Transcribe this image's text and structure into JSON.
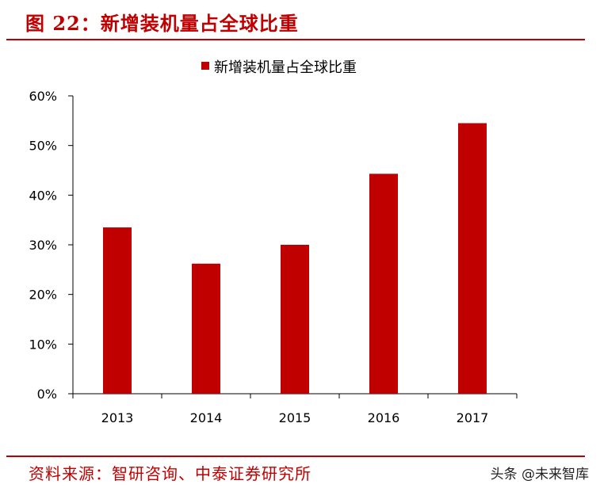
{
  "header": {
    "title": "图 22：新增装机量占全球比重"
  },
  "footer": {
    "source": "资料来源：智研咨询、中泰证券研究所",
    "watermark": "头条 @未来智库"
  },
  "colors": {
    "accent": "#c00000",
    "bar": "#c00000"
  },
  "chart_data": {
    "type": "bar",
    "categories": [
      "2013",
      "2014",
      "2015",
      "2016",
      "2017"
    ],
    "series": [
      {
        "name": "新增装机量占全球比重",
        "values": [
          33.5,
          26.2,
          30.0,
          44.3,
          54.5
        ]
      }
    ],
    "ylim": [
      0,
      60
    ],
    "yticks": [
      "0%",
      "10%",
      "20%",
      "30%",
      "40%",
      "50%",
      "60%"
    ],
    "ytick_values": [
      0,
      10,
      20,
      30,
      40,
      50,
      60
    ],
    "grid": false,
    "legend": "top-center"
  }
}
